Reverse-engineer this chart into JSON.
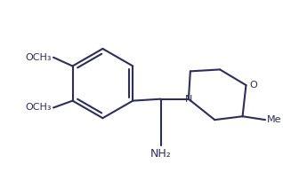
{
  "background_color": "#ffffff",
  "line_color": "#2d2d5e",
  "line_width": 1.5,
  "text_color": "#2d2d5e",
  "font_size": 8,
  "label_NH2": "NH₂",
  "label_N": "N",
  "label_O_morph": "O",
  "label_OCH3_top": "OCH₃",
  "label_OCH3_mid": "OCH₃",
  "label_Me": "Me"
}
